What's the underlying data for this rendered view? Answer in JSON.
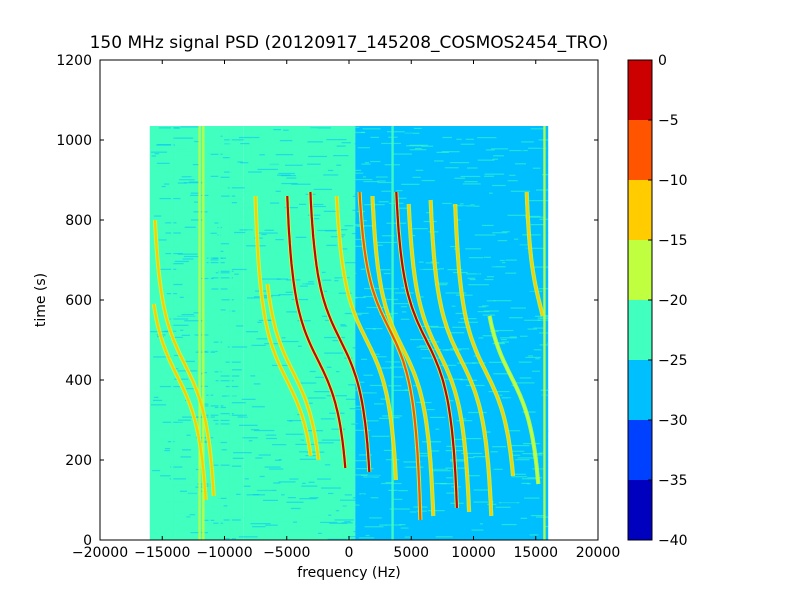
{
  "chart_data": {
    "type": "heatmap",
    "title": "150 MHz signal PSD (20120917_145208_COSMOS2454_TRO)",
    "xlabel": "frequency (Hz)",
    "ylabel": "time (s)",
    "xlim": [
      -20000,
      20000
    ],
    "ylim": [
      0,
      1200
    ],
    "xticks": [
      -20000,
      -15000,
      -10000,
      -5000,
      0,
      5000,
      10000,
      15000,
      20000
    ],
    "xtick_labels": [
      "−20000",
      "−15000",
      "−10000",
      "−5000",
      "0",
      "5000",
      "10000",
      "15000",
      "20000"
    ],
    "yticks": [
      0,
      200,
      400,
      600,
      800,
      1000,
      1200
    ],
    "ytick_labels": [
      "0",
      "200",
      "400",
      "600",
      "800",
      "1000",
      "1200"
    ],
    "data_extent": {
      "x": [
        -16000,
        16000
      ],
      "y": [
        0,
        1035
      ]
    },
    "background_levels": [
      {
        "x_from": -16000,
        "x_to": -8500,
        "level": -25
      },
      {
        "x_from": -8500,
        "x_to": 500,
        "level": -22
      },
      {
        "x_from": 500,
        "x_to": 16000,
        "level": -27
      }
    ],
    "colorbar": {
      "levels": [
        -40,
        -35,
        -30,
        -25,
        -20,
        -15,
        -10,
        -5,
        0
      ],
      "tick_labels": [
        "−40",
        "−35",
        "−30",
        "−25",
        "−20",
        "−15",
        "−10",
        "−5",
        "0"
      ],
      "colors": [
        "#0000bf",
        "#0040ff",
        "#00bfff",
        "#40ffbf",
        "#bfff40",
        "#ffcc00",
        "#ff5500",
        "#cc0000"
      ]
    },
    "traces": [
      {
        "f0": -13200,
        "t0": 440,
        "span": 3000,
        "tmin": 110,
        "tmax": 800,
        "level": -15
      },
      {
        "f0": -13800,
        "t0": 410,
        "span": 3000,
        "tmin": 100,
        "tmax": 590,
        "level": -12
      },
      {
        "f0": -5000,
        "t0": 400,
        "span": 3000,
        "tmin": 210,
        "tmax": 860,
        "level": -12
      },
      {
        "f0": -4500,
        "t0": 420,
        "span": 3000,
        "tmin": 200,
        "tmax": 640,
        "level": -15
      },
      {
        "f0": -2500,
        "t0": 450,
        "span": 3000,
        "tmin": 180,
        "tmax": 860,
        "level": -5
      },
      {
        "f0": -700,
        "t0": 500,
        "span": 3000,
        "tmin": 170,
        "tmax": 870,
        "level": 0
      },
      {
        "f0": 1400,
        "t0": 500,
        "span": 3000,
        "tmin": 150,
        "tmax": 860,
        "level": -15
      },
      {
        "f0": 3200,
        "t0": 530,
        "span": 3000,
        "tmin": 50,
        "tmax": 870,
        "level": -10
      },
      {
        "f0": 4300,
        "t0": 480,
        "span": 3000,
        "tmin": 60,
        "tmax": 860,
        "level": -15
      },
      {
        "f0": 6200,
        "t0": 500,
        "span": 3000,
        "tmin": 80,
        "tmax": 870,
        "level": -5
      },
      {
        "f0": 7200,
        "t0": 470,
        "span": 3000,
        "tmin": 70,
        "tmax": 840,
        "level": -15
      },
      {
        "f0": 9000,
        "t0": 450,
        "span": 3000,
        "tmin": 60,
        "tmax": 850,
        "level": -15
      },
      {
        "f0": 11000,
        "t0": 420,
        "span": 3000,
        "tmin": 160,
        "tmax": 840,
        "level": -15
      },
      {
        "f0": 13000,
        "t0": 410,
        "span": 3000,
        "tmin": 140,
        "tmax": 560,
        "level": -17
      },
      {
        "f0": 15400,
        "t0": 580,
        "span": 1500,
        "tmin": 560,
        "tmax": 870,
        "level": -15
      }
    ],
    "vertical_lines": [
      {
        "x": -14200,
        "level": -22
      },
      {
        "x": -12000,
        "level": -18
      },
      {
        "x": -11700,
        "level": -20
      },
      {
        "x": -11200,
        "level": -22
      },
      {
        "x": -10400,
        "level": -21
      },
      {
        "x": -9500,
        "level": -22
      },
      {
        "x": 3500,
        "level": -22
      },
      {
        "x": 15700,
        "level": -20
      }
    ]
  }
}
